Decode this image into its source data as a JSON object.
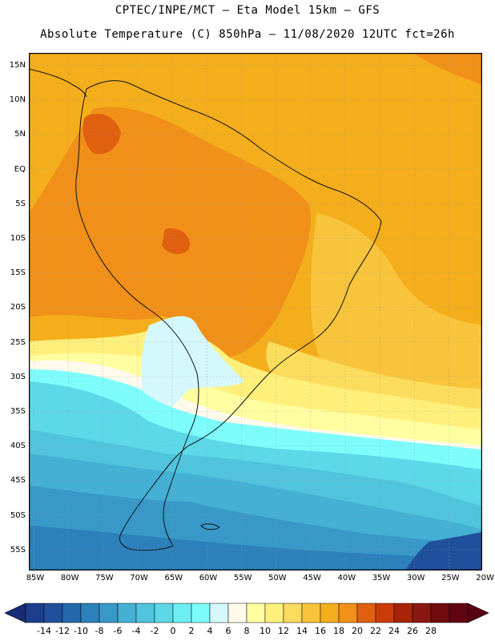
{
  "header": {
    "line1": "CPTEC/INPE/MCT –  Eta Model 15km – GFS",
    "line2": "Absolute Temperature (C) 850hPa – 11/08/2020 12UTC fct=26h"
  },
  "map": {
    "region": "South America",
    "lat_labels": [
      "15N",
      "10N",
      "5N",
      "EQ",
      "5S",
      "10S",
      "15S",
      "20S",
      "25S",
      "30S",
      "35S",
      "40S",
      "45S",
      "50S",
      "55S"
    ],
    "lon_labels": [
      "85W",
      "80W",
      "75W",
      "70W",
      "65W",
      "60W",
      "55W",
      "50W",
      "45W",
      "40W",
      "35W",
      "30W",
      "25W",
      "20W"
    ]
  },
  "colorbar": {
    "labels": [
      "-14",
      "-12",
      "-10",
      "-8",
      "-6",
      "-4",
      "-2",
      "0",
      "2",
      "4",
      "6",
      "8",
      "10",
      "12",
      "14",
      "16",
      "18",
      "20",
      "22",
      "24",
      "26",
      "28"
    ],
    "colors": [
      "#1c3e8c",
      "#20509c",
      "#2468ac",
      "#2c80bc",
      "#3898c8",
      "#44b0d4",
      "#50c4dc",
      "#5cd8e8",
      "#6ceef4",
      "#7efcfc",
      "#d4f8fc",
      "#fffaec",
      "#fffea0",
      "#fff07c",
      "#fcdc5c",
      "#f8c43c",
      "#f4ae1c",
      "#f09018",
      "#e06010",
      "#cc3c08",
      "#a82408",
      "#881810",
      "#700c10",
      "#600410"
    ],
    "under_color": "#182c78",
    "over_color": "#5a0012"
  },
  "colors": {
    "coast": "#111111",
    "frame": "#000000"
  }
}
